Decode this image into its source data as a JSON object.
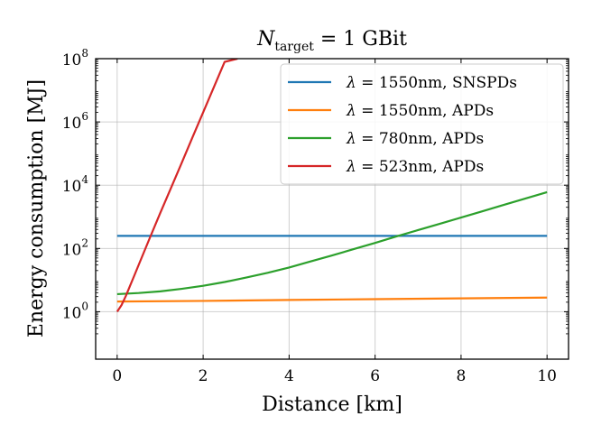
{
  "chart_data": {
    "type": "line",
    "title": {
      "var": "N",
      "subscript": "target",
      "rest": " = 1 GBit"
    },
    "xlabel": "Distance [km]",
    "ylabel": "Energy consumption [MJ]",
    "xlim": [
      -0.5,
      10.5
    ],
    "ylim_log10": [
      -1.5,
      8
    ],
    "yscale": "log",
    "grid": true,
    "legend_position": "top-right",
    "x_ticks": [
      {
        "value": 0,
        "label": "0"
      },
      {
        "value": 2,
        "label": "2"
      },
      {
        "value": 4,
        "label": "4"
      },
      {
        "value": 6,
        "label": "6"
      },
      {
        "value": 8,
        "label": "8"
      },
      {
        "value": 10,
        "label": "10"
      }
    ],
    "y_ticks": [
      {
        "exp": 0,
        "base": "10",
        "sup": "0"
      },
      {
        "exp": 2,
        "base": "10",
        "sup": "2"
      },
      {
        "exp": 4,
        "base": "10",
        "sup": "4"
      },
      {
        "exp": 6,
        "base": "10",
        "sup": "6"
      },
      {
        "exp": 8,
        "base": "10",
        "sup": "8"
      }
    ],
    "series": [
      {
        "name": "λ = 1550nm, SNSPDs",
        "legend_symbol": "λ",
        "legend_rest": " = 1550nm, SNSPDs",
        "color": "#1f77b4",
        "x": [
          0,
          2,
          4,
          6,
          8,
          10
        ],
        "y": [
          250,
          250,
          250,
          250,
          250,
          250
        ]
      },
      {
        "name": "λ = 1550nm, APDs",
        "legend_symbol": "λ",
        "legend_rest": " = 1550nm, APDs",
        "color": "#ff7f0e",
        "x": [
          0,
          2,
          4,
          6,
          8,
          10
        ],
        "y": [
          2.1,
          2.2,
          2.35,
          2.5,
          2.65,
          2.8
        ]
      },
      {
        "name": "λ = 780nm, APDs",
        "legend_symbol": "λ",
        "legend_rest": " = 780nm, APDs",
        "color": "#2ca02c",
        "x": [
          0,
          0.5,
          1,
          1.5,
          2,
          2.5,
          3,
          3.5,
          4,
          4.5,
          5,
          5.5,
          6,
          6.5,
          7,
          7.5,
          8,
          8.5,
          9,
          9.5,
          10
        ],
        "y": [
          3.6,
          3.9,
          4.4,
          5.3,
          6.6,
          8.7,
          12,
          17,
          25,
          39,
          60,
          95,
          150,
          240,
          380,
          600,
          950,
          1500,
          2400,
          3800,
          6000
        ]
      },
      {
        "name": "λ = 523nm, APDs",
        "legend_symbol": "λ",
        "legend_rest": " = 523nm, APDs",
        "color": "#d62728",
        "x": [
          0,
          0.1,
          0.2,
          0.3,
          0.4,
          0.5,
          0.75,
          1,
          1.25,
          1.5,
          1.75,
          2,
          2.25,
          2.5,
          2.8
        ],
        "y": [
          1,
          1.6,
          3.1,
          6.6,
          14,
          30,
          200,
          1300,
          8000,
          50000,
          320000,
          2000000,
          12600000,
          79000000,
          100000000
        ]
      }
    ]
  }
}
